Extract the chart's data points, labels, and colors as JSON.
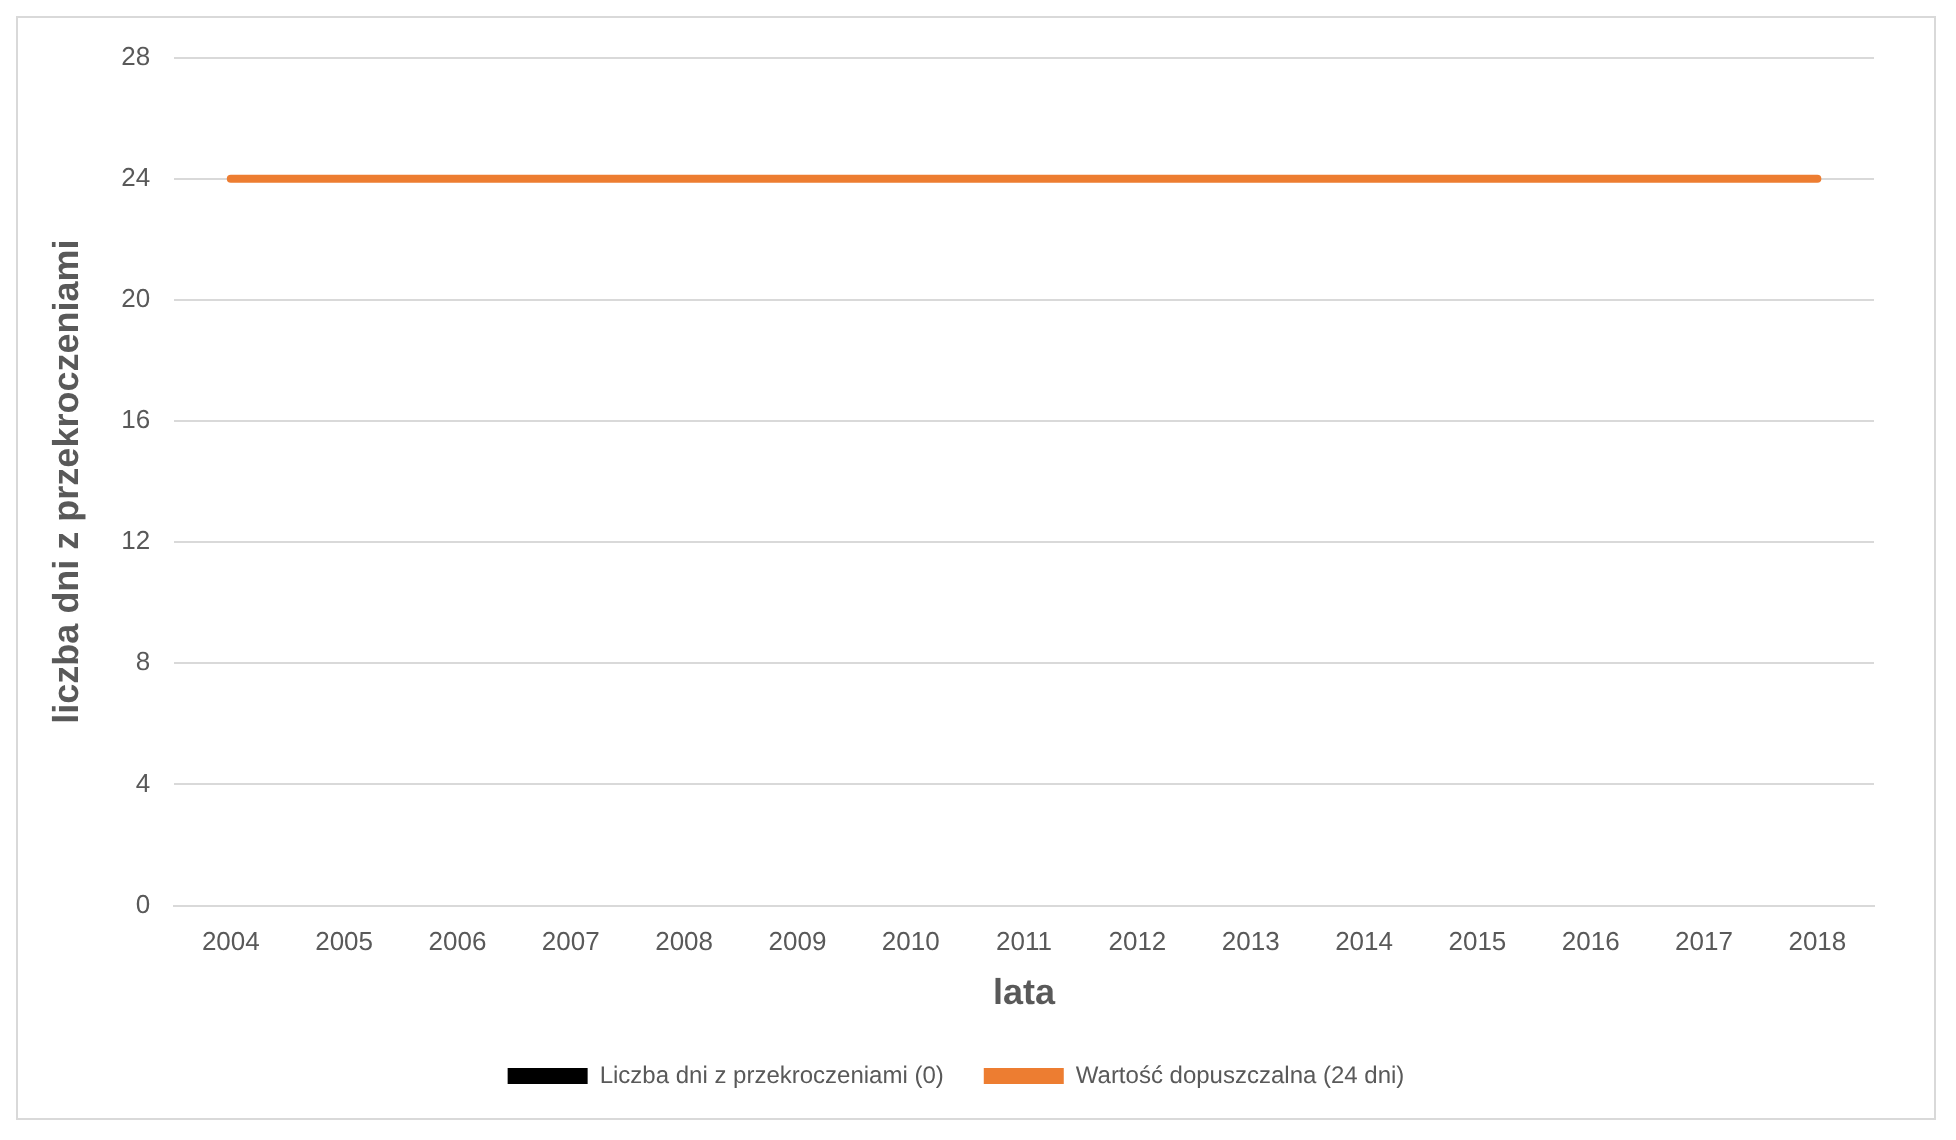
{
  "chart_data": {
    "type": "bar",
    "xlabel": "lata",
    "ylabel": "liczba dni z przekroczeniami",
    "categories": [
      "2004",
      "2005",
      "2006",
      "2007",
      "2008",
      "2009",
      "2010",
      "2011",
      "2012",
      "2013",
      "2014",
      "2015",
      "2016",
      "2017",
      "2018"
    ],
    "series": [
      {
        "name": "Liczba dni z przekroczeniami (0)",
        "color": "#000000",
        "values": [
          0,
          0,
          0,
          0,
          0,
          0,
          0,
          0,
          0,
          0,
          0,
          0,
          0,
          0,
          0
        ]
      },
      {
        "name": "Wartość dopuszczalna (24 dni)",
        "type": "line",
        "color": "#ed7d31",
        "values": [
          24,
          24,
          24,
          24,
          24,
          24,
          24,
          24,
          24,
          24,
          24,
          24,
          24,
          24,
          24
        ]
      }
    ],
    "ylim": [
      0,
      28
    ],
    "yticks": [
      0,
      4,
      8,
      12,
      16,
      20,
      24,
      28
    ],
    "grid": "y",
    "legend": "bottom",
    "marker": "none"
  }
}
